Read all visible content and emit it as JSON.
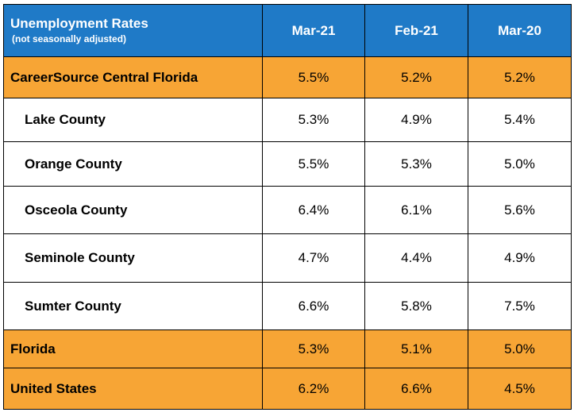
{
  "chart_data": {
    "type": "table",
    "title": "Unemployment Rates",
    "subtitle": "(not seasonally adjusted)",
    "columns": [
      "Mar-21",
      "Feb-21",
      "Mar-20"
    ],
    "rows": [
      {
        "name": "CareerSource Central Florida",
        "kind": "group",
        "values": [
          "5.5%",
          "5.2%",
          "5.2%"
        ]
      },
      {
        "name": "Lake County",
        "kind": "county",
        "values": [
          "5.3%",
          "4.9%",
          "5.4%"
        ]
      },
      {
        "name": "Orange County",
        "kind": "county",
        "values": [
          "5.5%",
          "5.3%",
          "5.0%"
        ]
      },
      {
        "name": "Osceola County",
        "kind": "county",
        "values": [
          "6.4%",
          "6.1%",
          "5.6%"
        ]
      },
      {
        "name": "Seminole County",
        "kind": "county",
        "values": [
          "4.7%",
          "4.4%",
          "4.9%"
        ]
      },
      {
        "name": "Sumter County",
        "kind": "county",
        "values": [
          "6.6%",
          "5.8%",
          "7.5%"
        ]
      },
      {
        "name": "Florida",
        "kind": "group",
        "values": [
          "5.3%",
          "5.1%",
          "5.0%"
        ]
      },
      {
        "name": "United States",
        "kind": "group",
        "values": [
          "6.2%",
          "6.6%",
          "4.5%"
        ]
      }
    ]
  },
  "colors": {
    "header_bg": "#1f7ac7",
    "header_text": "#ffffff",
    "group_bg": "#f7a535",
    "county_bg": "#ffffff",
    "border": "#000000"
  }
}
